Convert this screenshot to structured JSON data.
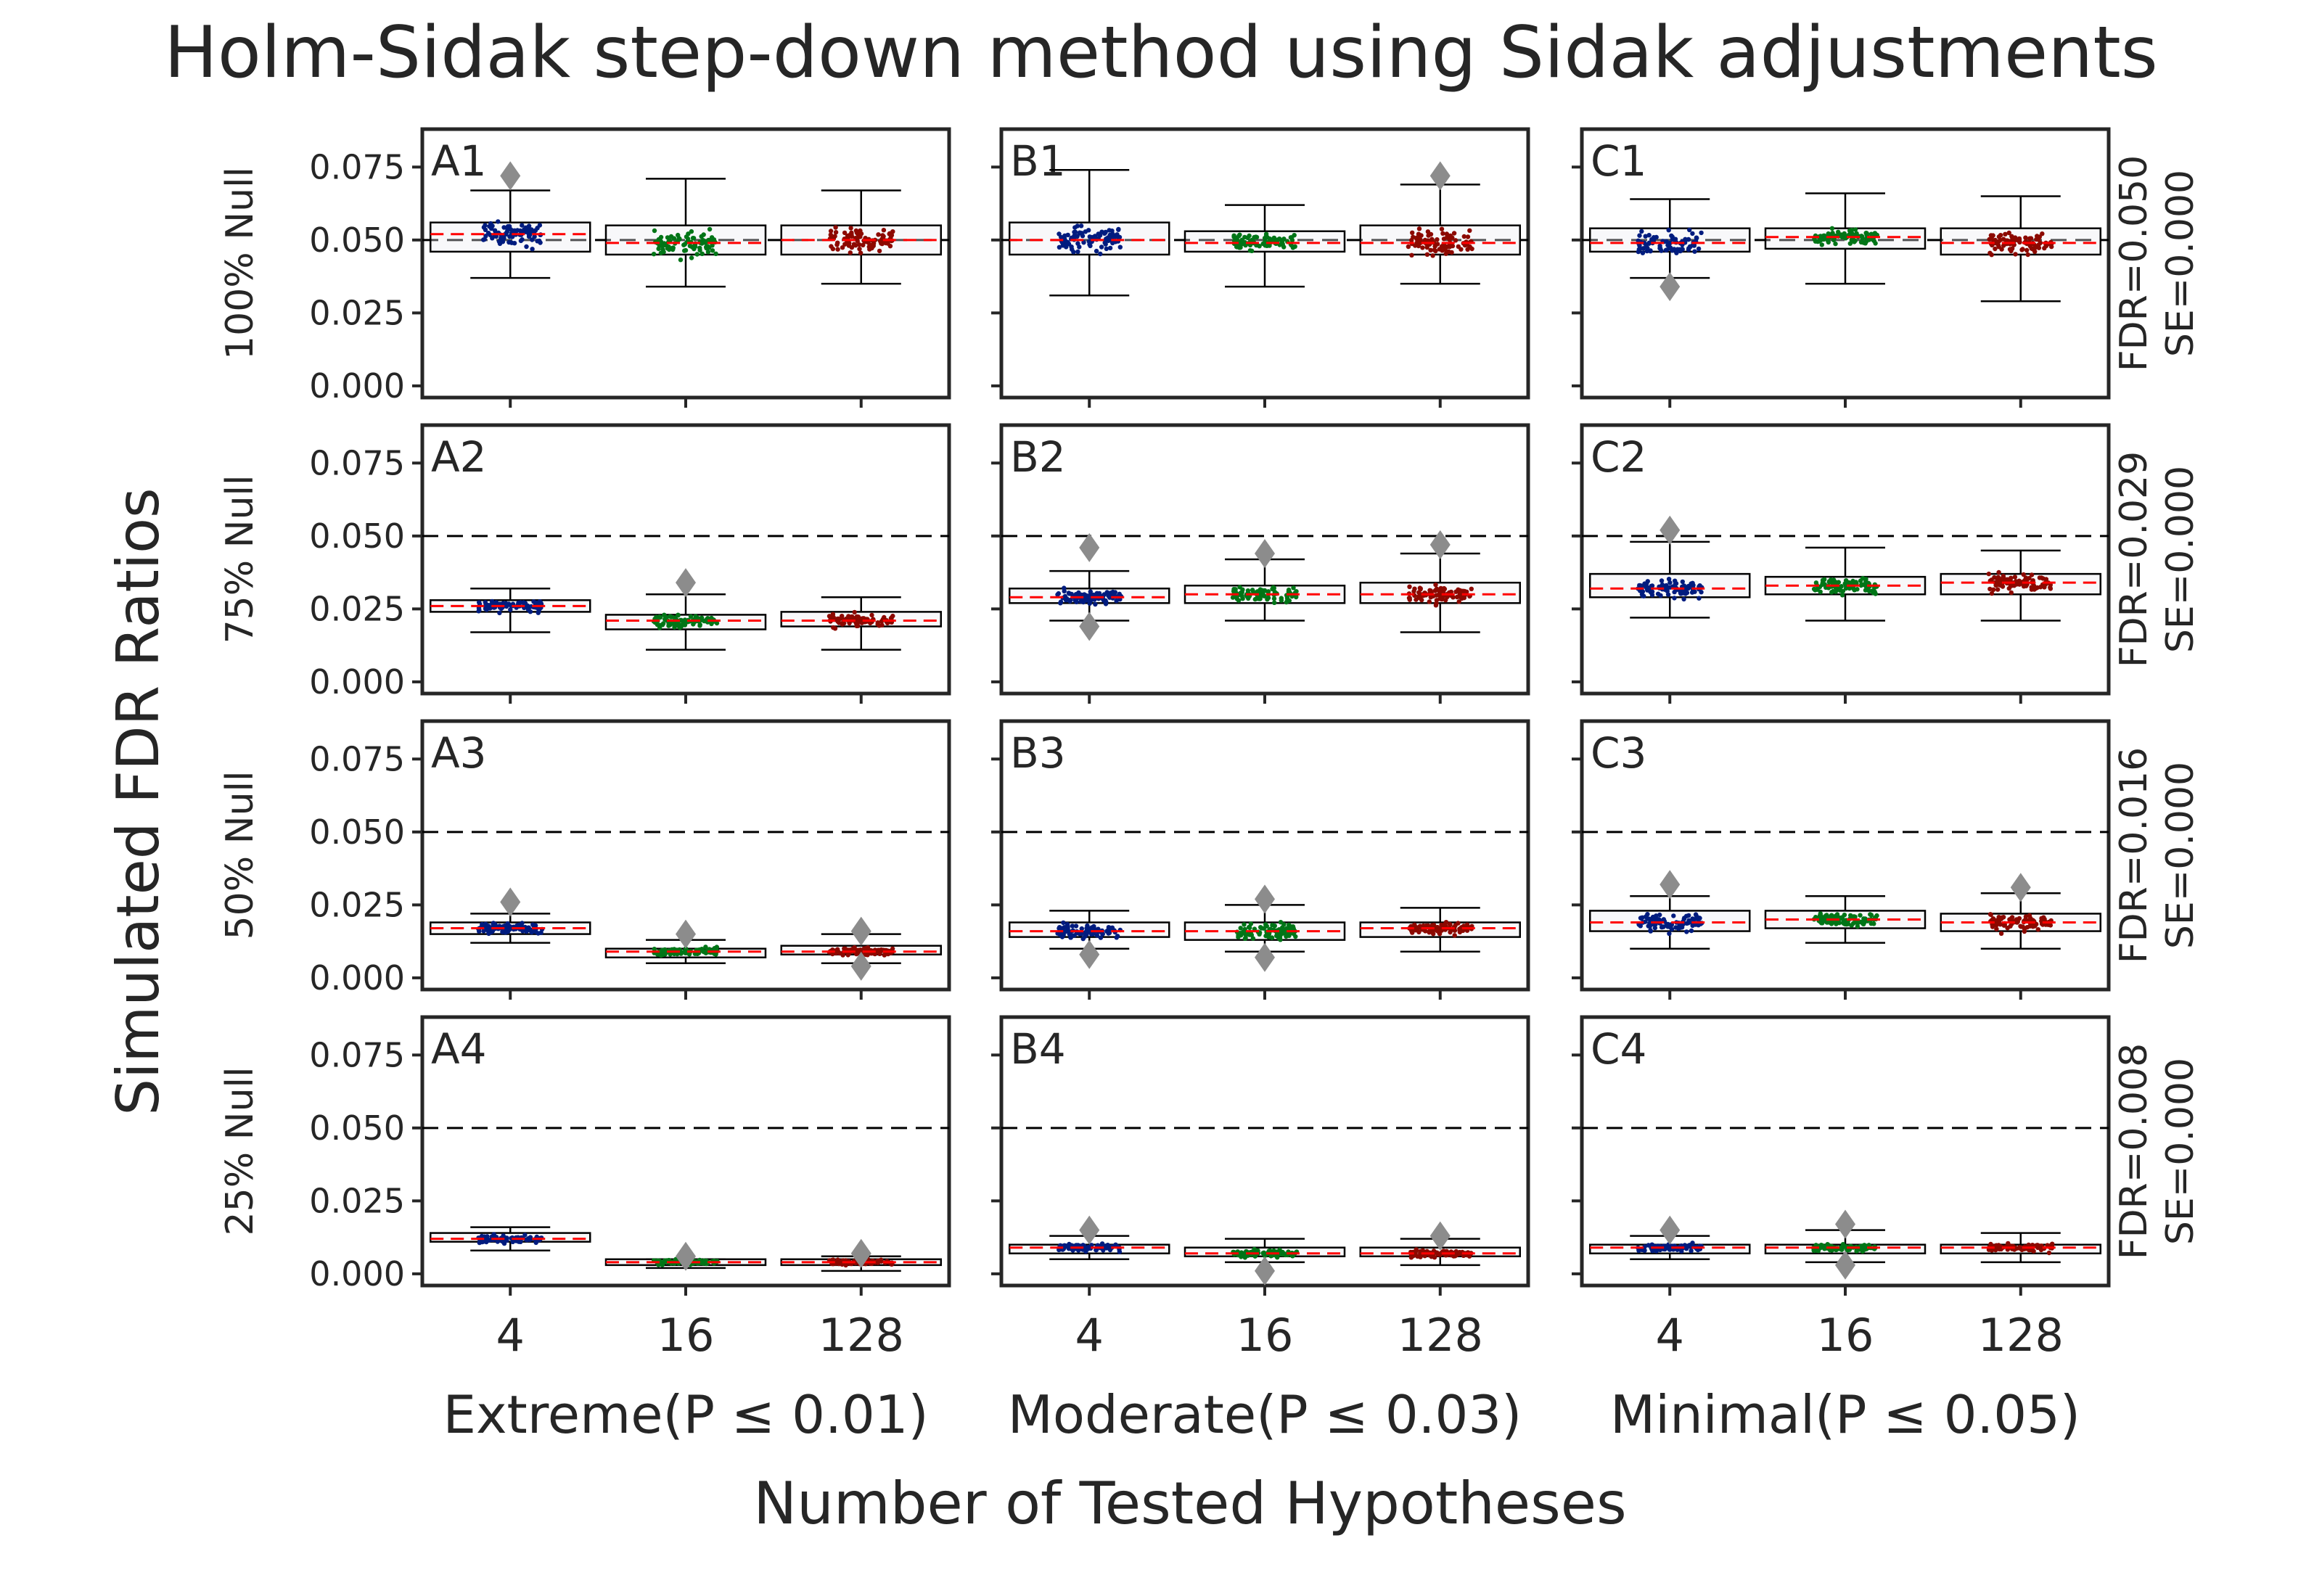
{
  "title": "Holm-Sidak step-down method using Sidak adjustments",
  "chart_data": {
    "type": "box",
    "title": "Holm-Sidak step-down method using Sidak adjustments",
    "ylabel": "Simulated FDR Ratios",
    "xlabel": "Number of Tested Hypotheses",
    "ylim": [
      -0.004,
      0.088
    ],
    "yticks": [
      "0.000",
      "0.025",
      "0.050",
      "0.075"
    ],
    "reference_line": 0.05,
    "grid": false,
    "colors": [
      "#001c7f",
      "#017517",
      "#8c0900"
    ],
    "median_color": "#ff0000",
    "outlier_color": "#8c8c8c",
    "categories": [
      "4",
      "16",
      "128"
    ],
    "columns": [
      "Extreme(P ≤ 0.01)",
      "Moderate(P ≤ 0.03)",
      "Minimal(P ≤ 0.05)"
    ],
    "rows": [
      {
        "label": "100% Null",
        "annotation": [
          "FDR=0.050",
          "SE=0.000"
        ]
      },
      {
        "label": "75% Null",
        "annotation": [
          "FDR=0.029",
          "SE=0.000"
        ]
      },
      {
        "label": "50% Null",
        "annotation": [
          "FDR=0.016",
          "SE=0.000"
        ]
      },
      {
        "label": "25% Null",
        "annotation": [
          "FDR=0.008",
          "SE=0.000"
        ]
      }
    ],
    "panels": [
      {
        "id": "A1",
        "row": 0,
        "col": 0,
        "boxes": [
          {
            "q1": 0.046,
            "median": 0.052,
            "q3": 0.056,
            "whislo": 0.037,
            "whishi": 0.067,
            "fliers": [
              0.072
            ]
          },
          {
            "q1": 0.045,
            "median": 0.049,
            "q3": 0.055,
            "whislo": 0.034,
            "whishi": 0.071,
            "fliers": []
          },
          {
            "q1": 0.045,
            "median": 0.05,
            "q3": 0.055,
            "whislo": 0.035,
            "whishi": 0.067,
            "fliers": []
          }
        ]
      },
      {
        "id": "B1",
        "row": 0,
        "col": 1,
        "boxes": [
          {
            "q1": 0.045,
            "median": 0.05,
            "q3": 0.056,
            "whislo": 0.031,
            "whishi": 0.074,
            "fliers": []
          },
          {
            "q1": 0.046,
            "median": 0.049,
            "q3": 0.053,
            "whislo": 0.034,
            "whishi": 0.062,
            "fliers": []
          },
          {
            "q1": 0.045,
            "median": 0.049,
            "q3": 0.055,
            "whislo": 0.035,
            "whishi": 0.069,
            "fliers": [
              0.072
            ]
          }
        ]
      },
      {
        "id": "C1",
        "row": 0,
        "col": 2,
        "boxes": [
          {
            "q1": 0.046,
            "median": 0.049,
            "q3": 0.054,
            "whislo": 0.037,
            "whishi": 0.064,
            "fliers": [
              0.034
            ]
          },
          {
            "q1": 0.047,
            "median": 0.051,
            "q3": 0.054,
            "whislo": 0.035,
            "whishi": 0.066,
            "fliers": []
          },
          {
            "q1": 0.045,
            "median": 0.049,
            "q3": 0.054,
            "whislo": 0.029,
            "whishi": 0.065,
            "fliers": []
          }
        ]
      },
      {
        "id": "A2",
        "row": 1,
        "col": 0,
        "boxes": [
          {
            "q1": 0.024,
            "median": 0.026,
            "q3": 0.028,
            "whislo": 0.017,
            "whishi": 0.032,
            "fliers": []
          },
          {
            "q1": 0.018,
            "median": 0.021,
            "q3": 0.023,
            "whislo": 0.011,
            "whishi": 0.03,
            "fliers": [
              0.034
            ]
          },
          {
            "q1": 0.019,
            "median": 0.021,
            "q3": 0.024,
            "whislo": 0.011,
            "whishi": 0.029,
            "fliers": []
          }
        ]
      },
      {
        "id": "B2",
        "row": 1,
        "col": 1,
        "boxes": [
          {
            "q1": 0.027,
            "median": 0.029,
            "q3": 0.032,
            "whislo": 0.021,
            "whishi": 0.038,
            "fliers": [
              0.046,
              0.019
            ]
          },
          {
            "q1": 0.027,
            "median": 0.03,
            "q3": 0.033,
            "whislo": 0.021,
            "whishi": 0.042,
            "fliers": [
              0.044
            ]
          },
          {
            "q1": 0.027,
            "median": 0.03,
            "q3": 0.034,
            "whislo": 0.017,
            "whishi": 0.044,
            "fliers": [
              0.047
            ]
          }
        ]
      },
      {
        "id": "C2",
        "row": 1,
        "col": 2,
        "boxes": [
          {
            "q1": 0.029,
            "median": 0.032,
            "q3": 0.037,
            "whislo": 0.022,
            "whishi": 0.048,
            "fliers": [
              0.052
            ]
          },
          {
            "q1": 0.03,
            "median": 0.033,
            "q3": 0.036,
            "whislo": 0.021,
            "whishi": 0.046,
            "fliers": []
          },
          {
            "q1": 0.03,
            "median": 0.034,
            "q3": 0.037,
            "whislo": 0.021,
            "whishi": 0.045,
            "fliers": []
          }
        ]
      },
      {
        "id": "A3",
        "row": 2,
        "col": 0,
        "boxes": [
          {
            "q1": 0.015,
            "median": 0.017,
            "q3": 0.019,
            "whislo": 0.012,
            "whishi": 0.022,
            "fliers": [
              0.026
            ]
          },
          {
            "q1": 0.007,
            "median": 0.009,
            "q3": 0.01,
            "whislo": 0.005,
            "whishi": 0.013,
            "fliers": [
              0.015
            ]
          },
          {
            "q1": 0.008,
            "median": 0.009,
            "q3": 0.011,
            "whislo": 0.005,
            "whishi": 0.015,
            "fliers": [
              0.016,
              0.004
            ]
          }
        ]
      },
      {
        "id": "B3",
        "row": 2,
        "col": 1,
        "boxes": [
          {
            "q1": 0.014,
            "median": 0.016,
            "q3": 0.019,
            "whislo": 0.01,
            "whishi": 0.023,
            "fliers": [
              0.008
            ]
          },
          {
            "q1": 0.013,
            "median": 0.016,
            "q3": 0.019,
            "whislo": 0.009,
            "whishi": 0.025,
            "fliers": [
              0.027,
              0.007
            ]
          },
          {
            "q1": 0.014,
            "median": 0.017,
            "q3": 0.019,
            "whislo": 0.009,
            "whishi": 0.024,
            "fliers": []
          }
        ]
      },
      {
        "id": "C3",
        "row": 2,
        "col": 2,
        "boxes": [
          {
            "q1": 0.016,
            "median": 0.019,
            "q3": 0.023,
            "whislo": 0.01,
            "whishi": 0.028,
            "fliers": [
              0.032
            ]
          },
          {
            "q1": 0.017,
            "median": 0.02,
            "q3": 0.023,
            "whislo": 0.012,
            "whishi": 0.028,
            "fliers": []
          },
          {
            "q1": 0.016,
            "median": 0.019,
            "q3": 0.022,
            "whislo": 0.01,
            "whishi": 0.029,
            "fliers": [
              0.031
            ]
          }
        ]
      },
      {
        "id": "A4",
        "row": 3,
        "col": 0,
        "boxes": [
          {
            "q1": 0.011,
            "median": 0.012,
            "q3": 0.014,
            "whislo": 0.008,
            "whishi": 0.016,
            "fliers": []
          },
          {
            "q1": 0.003,
            "median": 0.004,
            "q3": 0.005,
            "whislo": 0.002,
            "whishi": 0.005,
            "fliers": [
              0.006
            ]
          },
          {
            "q1": 0.003,
            "median": 0.004,
            "q3": 0.005,
            "whislo": 0.001,
            "whishi": 0.006,
            "fliers": [
              0.007
            ]
          }
        ]
      },
      {
        "id": "B4",
        "row": 3,
        "col": 1,
        "boxes": [
          {
            "q1": 0.007,
            "median": 0.009,
            "q3": 0.01,
            "whislo": 0.005,
            "whishi": 0.013,
            "fliers": [
              0.015
            ]
          },
          {
            "q1": 0.006,
            "median": 0.007,
            "q3": 0.009,
            "whislo": 0.004,
            "whishi": 0.012,
            "fliers": [
              0.001
            ]
          },
          {
            "q1": 0.006,
            "median": 0.007,
            "q3": 0.009,
            "whislo": 0.003,
            "whishi": 0.012,
            "fliers": [
              0.013
            ]
          }
        ]
      },
      {
        "id": "C4",
        "row": 3,
        "col": 2,
        "boxes": [
          {
            "q1": 0.007,
            "median": 0.009,
            "q3": 0.01,
            "whislo": 0.005,
            "whishi": 0.013,
            "fliers": [
              0.015
            ]
          },
          {
            "q1": 0.007,
            "median": 0.009,
            "q3": 0.01,
            "whislo": 0.004,
            "whishi": 0.015,
            "fliers": [
              0.017,
              0.003
            ]
          },
          {
            "q1": 0.007,
            "median": 0.009,
            "q3": 0.01,
            "whislo": 0.004,
            "whishi": 0.014,
            "fliers": []
          }
        ]
      }
    ]
  }
}
